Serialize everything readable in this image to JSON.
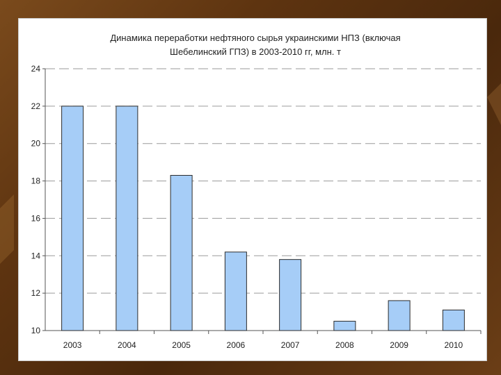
{
  "chart_data": {
    "type": "bar",
    "title_line1": "Динамика переработки нефтяного сырья украинскими НПЗ (включая",
    "title_line2": "Шебелинский ГПЗ) в 2003-2010 гг, млн. т",
    "categories": [
      "2003",
      "2004",
      "2005",
      "2006",
      "2007",
      "2008",
      "2009",
      "2010"
    ],
    "values": [
      22.0,
      22.0,
      18.3,
      14.2,
      13.8,
      10.5,
      11.6,
      11.1
    ],
    "ylim": [
      10,
      24
    ],
    "yticks": [
      "10",
      "12",
      "14",
      "16",
      "18",
      "20",
      "22",
      "24"
    ],
    "grid": true,
    "bar_color": "#a6cdf7",
    "bar_stroke": "#2b2b2b"
  }
}
